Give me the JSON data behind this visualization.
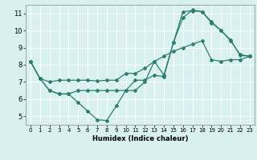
{
  "xlabel": "Humidex (Indice chaleur)",
  "bg_color": "#d8f0f0",
  "grid_color": "#ffffff",
  "line_color": "#2e7d6e",
  "xlim": [
    -0.5,
    23.5
  ],
  "ylim": [
    4.5,
    11.5
  ],
  "xticks": [
    0,
    1,
    2,
    3,
    4,
    5,
    6,
    7,
    8,
    9,
    10,
    11,
    12,
    13,
    14,
    15,
    16,
    17,
    18,
    19,
    20,
    21,
    22,
    23
  ],
  "yticks": [
    5,
    6,
    7,
    8,
    9,
    10,
    11
  ],
  "line1_x": [
    0,
    1,
    2,
    3,
    4,
    5,
    6,
    7,
    8,
    9,
    10,
    11,
    12,
    13,
    14,
    15,
    16,
    17,
    18,
    19,
    20,
    21,
    22,
    23
  ],
  "line1_y": [
    8.2,
    7.2,
    6.5,
    6.3,
    6.3,
    5.8,
    5.3,
    4.8,
    4.75,
    5.6,
    6.5,
    6.5,
    7.0,
    8.2,
    7.4,
    9.3,
    11.1,
    11.15,
    11.1,
    10.5,
    10.0,
    9.4,
    8.6,
    8.5
  ],
  "line2_x": [
    0,
    1,
    2,
    3,
    4,
    5,
    6,
    7,
    8,
    9,
    10,
    11,
    12,
    13,
    14,
    15,
    16,
    17,
    18,
    19,
    20,
    21,
    22,
    23
  ],
  "line2_y": [
    8.2,
    7.2,
    7.0,
    7.1,
    7.1,
    7.1,
    7.1,
    7.05,
    7.1,
    7.1,
    7.5,
    7.5,
    7.8,
    8.2,
    8.5,
    8.8,
    9.0,
    9.2,
    9.4,
    8.3,
    8.2,
    8.3,
    8.3,
    8.5
  ],
  "line3_x": [
    0,
    1,
    2,
    3,
    4,
    5,
    6,
    7,
    8,
    9,
    10,
    11,
    12,
    13,
    14,
    15,
    16,
    17,
    18,
    19,
    20,
    21,
    22,
    23
  ],
  "line3_y": [
    8.2,
    7.2,
    6.5,
    6.3,
    6.3,
    6.5,
    6.5,
    6.5,
    6.5,
    6.5,
    6.5,
    7.1,
    7.1,
    7.4,
    7.3,
    9.3,
    10.75,
    11.2,
    11.1,
    10.45,
    10.0,
    9.45,
    8.55,
    8.5
  ]
}
